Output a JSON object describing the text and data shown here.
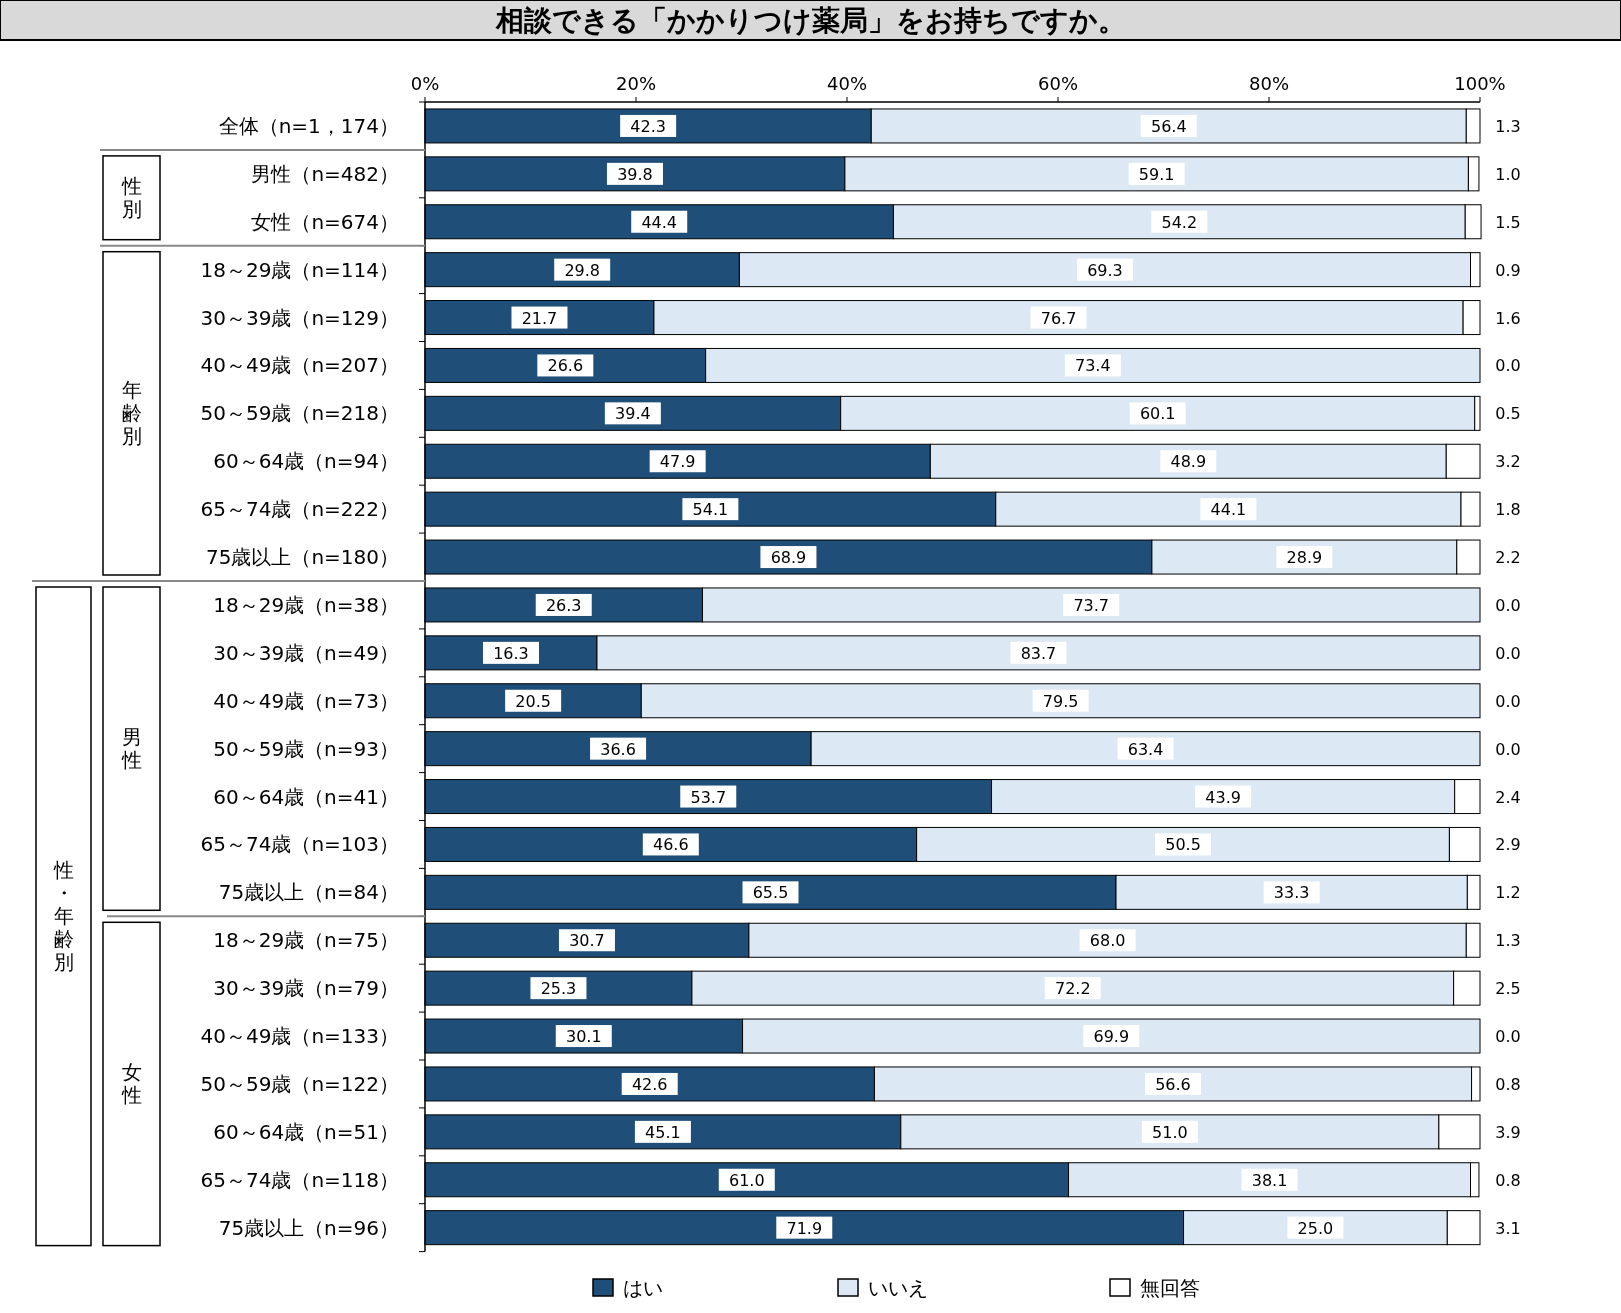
{
  "chart_data": {
    "type": "bar",
    "orientation": "horizontal",
    "stacked": true,
    "title": "相談できる「かかりつけ薬局」をお持ちですか。",
    "categories": [
      "全体（n=1，174）",
      "男性（n=482）",
      "女性（n=674）",
      "18～29歳（n=114）",
      "30～39歳（n=129）",
      "40～49歳（n=207）",
      "50～59歳（n=218）",
      "60～64歳（n=94）",
      "65～74歳（n=222）",
      "75歳以上（n=180）",
      "18～29歳（n=38）",
      "30～39歳（n=49）",
      "40～49歳（n=73）",
      "50～59歳（n=93）",
      "60～64歳（n=41）",
      "65～74歳（n=103）",
      "75歳以上（n=84）",
      "18～29歳（n=75）",
      "30～39歳（n=79）",
      "40～49歳（n=133）",
      "50～59歳（n=122）",
      "60～64歳（n=51）",
      "65～74歳（n=118）",
      "75歳以上（n=96）"
    ],
    "series": [
      {
        "name": "はい",
        "color": "#1f4e79",
        "values": [
          42.3,
          39.8,
          44.4,
          29.8,
          21.7,
          26.6,
          39.4,
          47.9,
          54.1,
          68.9,
          26.3,
          16.3,
          20.5,
          36.6,
          53.7,
          46.6,
          65.5,
          30.7,
          25.3,
          30.1,
          42.6,
          45.1,
          61,
          71.9
        ],
        "value_labels": [
          "42.3",
          "39.8",
          "44.4",
          "29.8",
          "21.7",
          "26.6",
          "39.4",
          "47.9",
          "54.1",
          "68.9",
          "26.3",
          "16.3",
          "20.5",
          "36.6",
          "53.7",
          "46.6",
          "65.5",
          "30.7",
          "25.3",
          "30.1",
          "42.6",
          "45.1",
          "61.0",
          "71.9"
        ]
      },
      {
        "name": "いいえ",
        "color": "#dce9f5",
        "values": [
          56.4,
          59.1,
          54.2,
          69.3,
          76.7,
          73.4,
          60.1,
          48.9,
          44.1,
          28.9,
          73.7,
          83.7,
          79.5,
          63.4,
          43.9,
          50.5,
          33.3,
          68,
          72.2,
          69.9,
          56.6,
          51,
          38.1,
          25
        ],
        "value_labels": [
          "56.4",
          "59.1",
          "54.2",
          "69.3",
          "76.7",
          "73.4",
          "60.1",
          "48.9",
          "44.1",
          "28.9",
          "73.7",
          "83.7",
          "79.5",
          "63.4",
          "43.9",
          "50.5",
          "33.3",
          "68.0",
          "72.2",
          "69.9",
          "56.6",
          "51.0",
          "38.1",
          "25.0"
        ]
      },
      {
        "name": "無回答",
        "color": "#ffffff",
        "values": [
          1.3,
          1,
          1.5,
          0.9,
          1.6,
          0,
          0.5,
          3.2,
          1.8,
          2.2,
          0,
          0,
          0,
          0,
          2.4,
          2.9,
          1.2,
          1.3,
          2.5,
          0,
          0.8,
          3.9,
          0.8,
          3.1
        ],
        "value_labels": [
          "1.3",
          "1.0",
          "1.5",
          "0.9",
          "1.6",
          "0.0",
          "0.5",
          "3.2",
          "1.8",
          "2.2",
          "0.0",
          "0.0",
          "0.0",
          "0.0",
          "2.4",
          "2.9",
          "1.2",
          "1.3",
          "2.5",
          "0.0",
          "0.8",
          "3.9",
          "0.8",
          "3.1"
        ]
      }
    ],
    "xlim": [
      0,
      100
    ],
    "xticks": [
      {
        "value": 0,
        "label": "0%"
      },
      {
        "value": 20,
        "label": "20%"
      },
      {
        "value": 40,
        "label": "40%"
      },
      {
        "value": 60,
        "label": "60%"
      },
      {
        "value": 80,
        "label": "80%"
      },
      {
        "value": 100,
        "label": "100%"
      }
    ],
    "annotations": [
      "性別",
      "年齢別",
      "性・年齢別",
      "男性",
      "女性"
    ],
    "legend": "bottom"
  }
}
